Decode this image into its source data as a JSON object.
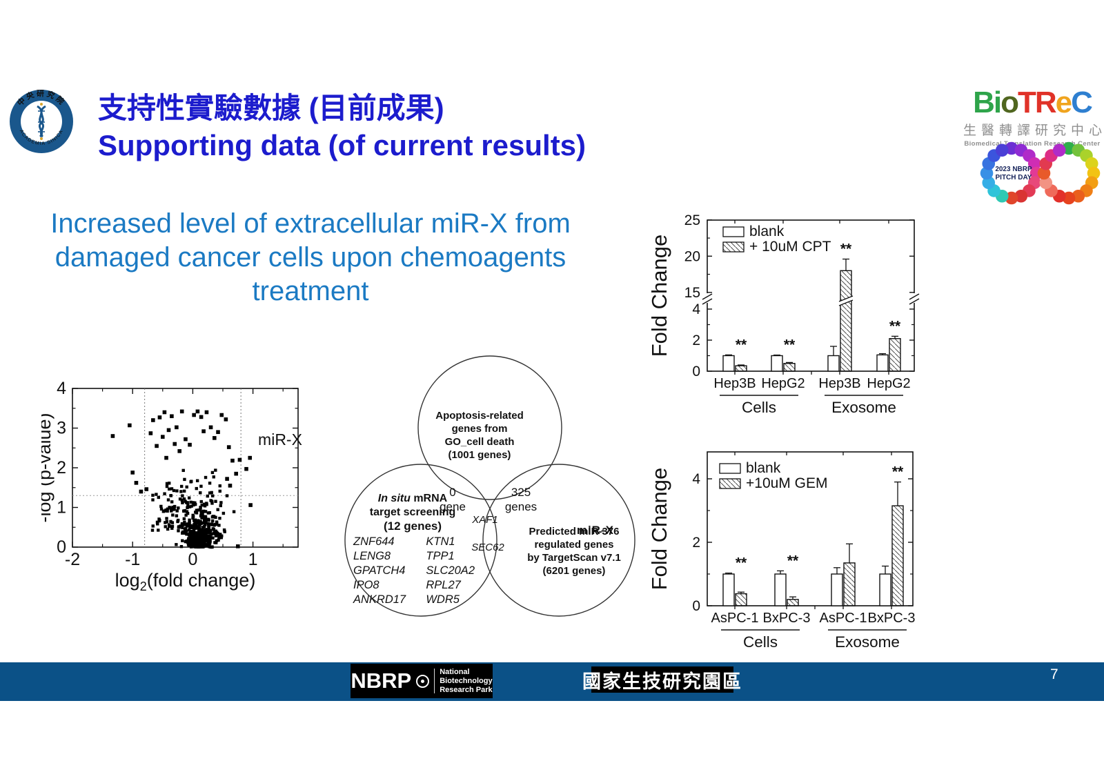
{
  "slide": {
    "title_zh": "支持性實驗數據 (目前成果)",
    "title_en": "Supporting data (of current results)",
    "subtitle_lines": [
      "Increased level of extracellular miR-X from",
      "damaged cancer cells upon chemoagents",
      "treatment"
    ],
    "colors": {
      "title_blue": "#1c1ccd",
      "subtitle_blue": "#1b7ac3",
      "accent_red": "#e8211d",
      "footer_navy": "#0b5187"
    }
  },
  "logos": {
    "academia_sinica": {
      "ring_text_top": "中央研究院",
      "ring_text_bottom": "ACADEMIA SINICA"
    },
    "biotrec": {
      "letters": [
        {
          "ch": "B",
          "c": "#2ea44a"
        },
        {
          "ch": "i",
          "c": "#2ea44a"
        },
        {
          "ch": "o",
          "c": "#50661f"
        },
        {
          "ch": "T",
          "c": "#e03228"
        },
        {
          "ch": "R",
          "c": "#e03228"
        },
        {
          "ch": "e",
          "c": "#f0a41e"
        },
        {
          "ch": "C",
          "c": "#2e7fd0"
        }
      ],
      "zh": "生醫轉譯研究中心",
      "en": "Biomedical Translation Research Center"
    },
    "pitch_day": {
      "text_lines": [
        "2023 NBRP",
        "PITCH DAY"
      ],
      "left_ring_colors": [
        "#6c2fd3",
        "#8e2bd3",
        "#b02bc9",
        "#cf2db4",
        "#e23a96",
        "#e8487a",
        "#e23a55",
        "#d93333",
        "#e0452b",
        "#2fc9b4",
        "#2fc4d9",
        "#35aee6",
        "#3890e6",
        "#3873e0",
        "#3b55dd",
        "#4b3fd6"
      ],
      "right_ring_colors": [
        "#2fae4a",
        "#74c23c",
        "#aad22b",
        "#dcd31c",
        "#f2c313",
        "#f29e13",
        "#ef7f16",
        "#ea5f1d",
        "#e6431f",
        "#e2302a",
        "#ef6a5a",
        "#f29383",
        "#e85a2a",
        "#e23a50",
        "#dd2d86",
        "#b02bc9"
      ]
    },
    "nbrp": {
      "acronym": "NBRP",
      "lines": [
        "National",
        "Biotechnology",
        "Research Park"
      ]
    },
    "park_zh": "國家生技研究園區"
  },
  "footer": {
    "page_number": "7"
  },
  "chart_data": [
    {
      "type": "scatter",
      "name": "volcano-mirna-plot",
      "xlabel_parts": [
        "log",
        "2",
        "(fold change)"
      ],
      "ylabel": "-log (p-value)",
      "xlim": [
        -2,
        1.75
      ],
      "ylim": [
        0,
        4
      ],
      "x_ticks": [
        -2,
        -1,
        0,
        1
      ],
      "y_ticks": [
        0,
        1,
        2,
        3,
        4
      ],
      "threshold_x": [
        -0.8,
        0.8
      ],
      "threshold_y": 1.3,
      "highlight": {
        "label": "miR-X",
        "x": 0.95,
        "y": 2.25,
        "color": "#e8211d"
      },
      "outliers": [
        [
          -1.33,
          2.8
        ],
        [
          -1.05,
          3.07
        ],
        [
          -0.94,
          1.62
        ],
        [
          -1.0,
          1.88
        ],
        [
          -0.86,
          1.4
        ],
        [
          -0.77,
          1.46
        ],
        [
          -0.7,
          2.87
        ],
        [
          -0.66,
          3.2
        ],
        [
          -0.6,
          2.55
        ],
        [
          -0.55,
          3.27
        ],
        [
          -0.5,
          2.78
        ],
        [
          -0.47,
          3.4
        ],
        [
          -0.44,
          2.25
        ],
        [
          -0.4,
          2.95
        ],
        [
          -0.35,
          3.3
        ],
        [
          -0.3,
          2.6
        ],
        [
          -0.27,
          3.02
        ],
        [
          -0.22,
          2.42
        ],
        [
          -0.18,
          3.42
        ],
        [
          -0.12,
          2.72
        ],
        [
          -0.05,
          2.58
        ],
        [
          0.02,
          3.33
        ],
        [
          0.08,
          3.42
        ],
        [
          0.14,
          3.28
        ],
        [
          0.18,
          2.92
        ],
        [
          0.23,
          3.4
        ],
        [
          0.3,
          3.02
        ],
        [
          0.36,
          2.75
        ],
        [
          0.42,
          2.9
        ],
        [
          0.48,
          3.33
        ],
        [
          0.55,
          3.22
        ],
        [
          0.6,
          2.52
        ],
        [
          0.66,
          2.18
        ],
        [
          0.72,
          1.85
        ],
        [
          0.78,
          2.2
        ],
        [
          0.95,
          2.25
        ],
        [
          0.89,
          1.97
        ],
        [
          0.96,
          1.06
        ],
        [
          0.75,
          0.02
        ],
        [
          0.62,
          1.55
        ],
        [
          0.57,
          1.72
        ]
      ],
      "cloud": {
        "count": 470,
        "left_arm": 75,
        "seed": 7,
        "x_center": 0.13
      }
    },
    {
      "type": "venn",
      "name": "gene-overlap-venn",
      "top": {
        "lines": [
          "Apoptosis-related",
          "genes from",
          "GO_cell death",
          "(1001 genes)"
        ]
      },
      "left": {
        "title_italic": "In situ",
        "title_rest": " mRNA",
        "line2": "target screening",
        "line3": "(12 genes)",
        "genes_col1": [
          "ZNF644",
          "LENG8",
          "GPATCH4",
          "IPO8",
          "ANKRD17"
        ],
        "genes_col2": [
          "KTN1",
          "TPP1",
          "SLC20A2",
          "RPL27",
          "WDR5"
        ]
      },
      "right": {
        "lines": [
          "Predicted miR-376",
          "regulated genes",
          "by TargetScan v7.1",
          "(6201 genes)"
        ],
        "overlay_label": "miR-X"
      },
      "overlaps": {
        "top_left": [
          "0",
          "gene"
        ],
        "top_right": [
          "325",
          "genes"
        ],
        "center": "XAF1",
        "left_right": "SEC62"
      }
    },
    {
      "type": "bar",
      "name": "cpt-fold-change",
      "ylabel": "Fold Change",
      "legend": [
        "blank",
        "+ 10uM CPT"
      ],
      "broken_axis": true,
      "y_ticks_lower": [
        0,
        2,
        4
      ],
      "y_ticks_upper": [
        15,
        20,
        25
      ],
      "sections": [
        {
          "label": "Cells",
          "categories": [
            "Hep3B",
            "HepG2"
          ]
        },
        {
          "label": "Exosome",
          "categories": [
            "Hep3B",
            "HepG2"
          ]
        }
      ],
      "series": [
        {
          "name": "blank",
          "values": [
            1.0,
            1.0,
            1.0,
            1.05
          ],
          "errors": [
            0.05,
            0.04,
            0.6,
            0.08
          ]
        },
        {
          "name": "+ 10uM CPT",
          "values": [
            0.35,
            0.5,
            18.0,
            2.1
          ],
          "errors": [
            0.05,
            0.06,
            1.6,
            0.15
          ]
        }
      ],
      "significance": [
        "**",
        "**",
        "**",
        "**"
      ]
    },
    {
      "type": "bar",
      "name": "gem-fold-change",
      "ylabel": "Fold Change",
      "legend": [
        "blank",
        "+10uM GEM"
      ],
      "broken_axis": false,
      "y_ticks": [
        0,
        2,
        4
      ],
      "sections": [
        {
          "label": "Cells",
          "categories": [
            "AsPC-1",
            "BxPC-3"
          ]
        },
        {
          "label": "Exosome",
          "categories": [
            "AsPC-1",
            "BxPC-3"
          ]
        }
      ],
      "series": [
        {
          "name": "blank",
          "values": [
            1.0,
            1.0,
            1.0,
            1.0
          ],
          "errors": [
            0.03,
            0.1,
            0.2,
            0.25
          ]
        },
        {
          "name": "+10uM GEM",
          "values": [
            0.38,
            0.2,
            1.35,
            3.15
          ],
          "errors": [
            0.05,
            0.08,
            0.6,
            0.75
          ]
        }
      ],
      "significance": [
        "**",
        "**",
        "",
        "**"
      ]
    }
  ]
}
